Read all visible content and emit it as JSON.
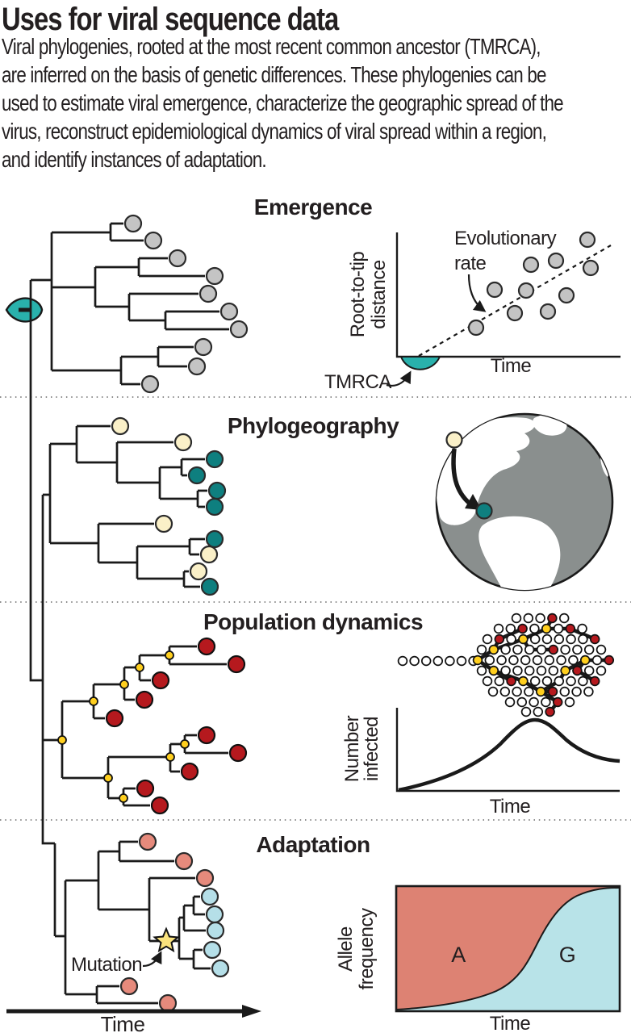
{
  "title": "Uses for viral sequence data",
  "intro": {
    "lines": [
      "Viral phylogenies, rooted at the most recent common ancestor (TMRCA),",
      "are inferred on the basis of genetic differences. These phylogenies can be",
      "used to estimate viral emergence, characterize the geographic spread of the",
      "virus, reconstruct epidemiological dynamics of viral spread within a region,",
      "and identify instances of adaptation."
    ]
  },
  "sections": {
    "emergence": {
      "heading": "Emergence",
      "scatter": {
        "ylabel_lines": [
          "Root-to-tip",
          "distance"
        ],
        "xlabel": "Time",
        "annotation_lines": [
          "Evolutionary",
          "rate"
        ],
        "tmrca_label": "TMRCA"
      }
    },
    "phylogeography": {
      "heading": "Phylogeography"
    },
    "population_dynamics": {
      "heading": "Population dynamics",
      "curve": {
        "ylabel_lines": [
          "Number",
          "infected"
        ],
        "xlabel": "Time"
      }
    },
    "adaptation": {
      "heading": "Adaptation",
      "mutation_label": "Mutation",
      "allele_chart": {
        "ylabel_lines": [
          "Allele",
          "frequency"
        ],
        "xlabel": "Time",
        "region_a": "A",
        "region_g": "G"
      }
    }
  },
  "tree": {
    "time_axis_label": "Time",
    "tip_counts": {
      "emergence_gray": 10,
      "phylogeography_cream": 5,
      "phylogeography_teal": 6,
      "population_red": 10,
      "population_mutation_nodes": 9,
      "adaptation_salmon": 5,
      "adaptation_blue": 5
    }
  },
  "network": {
    "node_colors": [
      "white",
      "red",
      "yellow"
    ],
    "lead_in_nodes": 7
  },
  "palette": {
    "teal_accent": "#29b1ac",
    "teal_dark": "#0e7f7f",
    "gray_tip": "#c4c4c4",
    "cream": "#faf0c8",
    "red_dark": "#b5191e",
    "yellow_node": "#ffcf1e",
    "salmon": "#e68a7c",
    "light_blue": "#b5dfe8",
    "salmon_fill": "#dd8273",
    "blue_fill": "#b8e3e8",
    "globe_gray": "#8a8f8e",
    "line": "#1a1a1a",
    "text": "#231f20",
    "star_yellow": "#f9e27d"
  },
  "chart_data": [
    {
      "id": "root_to_tip_scatter",
      "type": "scatter",
      "title": "Emergence",
      "xlabel": "Time",
      "ylabel": "Root-to-tip distance",
      "annotation": "Evolutionary rate",
      "origin_marker": "TMRCA",
      "points_norm": [
        [
          0.86,
          0.94
        ],
        [
          0.71,
          0.77
        ],
        [
          0.6,
          0.74
        ],
        [
          0.87,
          0.71
        ],
        [
          0.44,
          0.54
        ],
        [
          0.58,
          0.53
        ],
        [
          0.76,
          0.49
        ],
        [
          0.68,
          0.36
        ],
        [
          0.53,
          0.35
        ],
        [
          0.36,
          0.23
        ]
      ],
      "trend_line_norm": [
        [
          0.1,
          0.0
        ],
        [
          0.96,
          0.9
        ]
      ],
      "xlim": [
        0,
        1
      ],
      "ylim": [
        0,
        1
      ],
      "grid": false
    },
    {
      "id": "epidemic_curve",
      "type": "line",
      "xlabel": "Time",
      "ylabel": "Number infected",
      "points_norm": [
        [
          0.01,
          0.01
        ],
        [
          0.21,
          0.13
        ],
        [
          0.36,
          0.29
        ],
        [
          0.46,
          0.56
        ],
        [
          0.55,
          0.8
        ],
        [
          0.62,
          0.85
        ],
        [
          0.68,
          0.81
        ],
        [
          0.76,
          0.61
        ],
        [
          0.86,
          0.44
        ],
        [
          1.0,
          0.36
        ]
      ],
      "xlim": [
        0,
        1
      ],
      "ylim": [
        0,
        1
      ],
      "grid": false
    },
    {
      "id": "allele_frequency",
      "type": "area",
      "xlabel": "Time",
      "ylabel": "Allele frequency",
      "x": [
        0,
        0.25,
        0.45,
        0.55,
        0.65,
        0.75,
        0.85,
        1.0
      ],
      "series": [
        {
          "name": "A",
          "values": [
            0.99,
            0.96,
            0.85,
            0.65,
            0.38,
            0.15,
            0.04,
            0.01
          ]
        },
        {
          "name": "G",
          "values": [
            0.01,
            0.04,
            0.15,
            0.35,
            0.62,
            0.85,
            0.96,
            0.99
          ]
        }
      ],
      "xlim": [
        0,
        1
      ],
      "ylim": [
        0,
        1
      ],
      "grid": false
    }
  ]
}
